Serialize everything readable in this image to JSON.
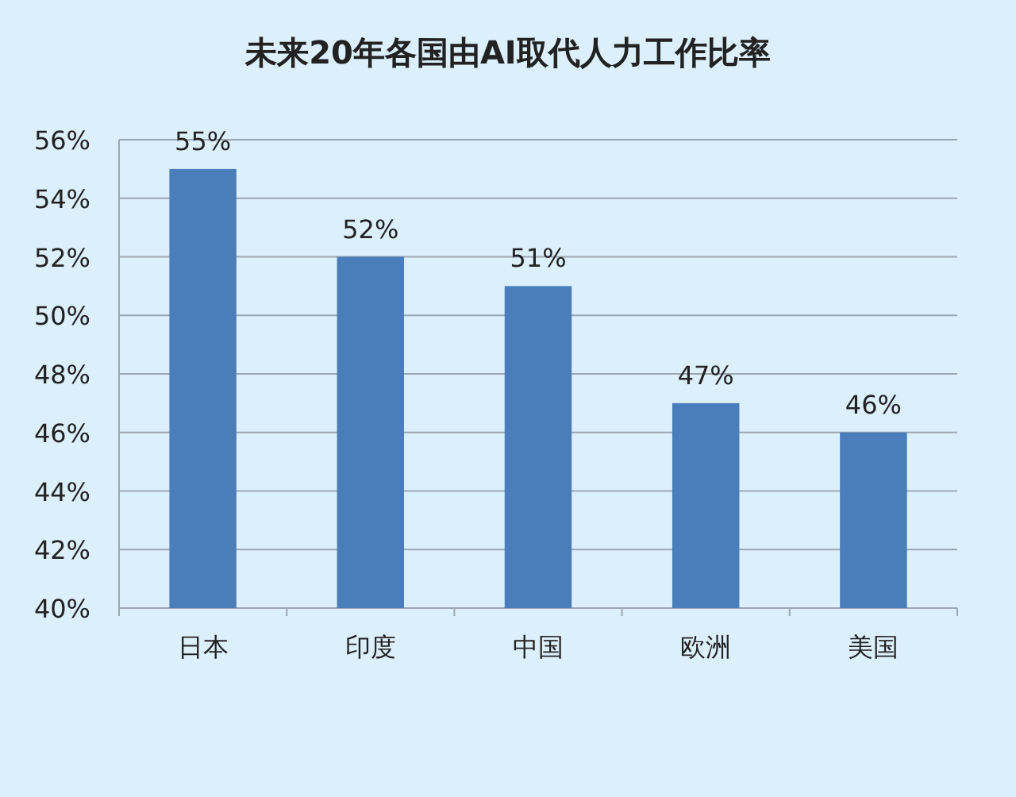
{
  "chart_data": {
    "type": "bar",
    "title": "未来20年各国由AI取代人力工作比率",
    "categories": [
      "日本",
      "印度",
      "中国",
      "欧洲",
      "美国"
    ],
    "values": [
      55,
      52,
      51,
      47,
      46
    ],
    "color": "#4a7ebb",
    "value_labels": [
      "55%",
      "52%",
      "51%",
      "47%",
      "46%"
    ],
    "ylim": [
      40,
      56
    ],
    "yticks": [
      {
        "value": 40,
        "label": "40%"
      },
      {
        "value": 42,
        "label": "42%"
      },
      {
        "value": 44,
        "label": "44%"
      },
      {
        "value": 46,
        "label": "46%"
      },
      {
        "value": 48,
        "label": "48%"
      },
      {
        "value": 50,
        "label": "50%"
      },
      {
        "value": 52,
        "label": "52%"
      },
      {
        "value": 54,
        "label": "54%"
      },
      {
        "value": 56,
        "label": "56%"
      }
    ],
    "grid": "y"
  }
}
